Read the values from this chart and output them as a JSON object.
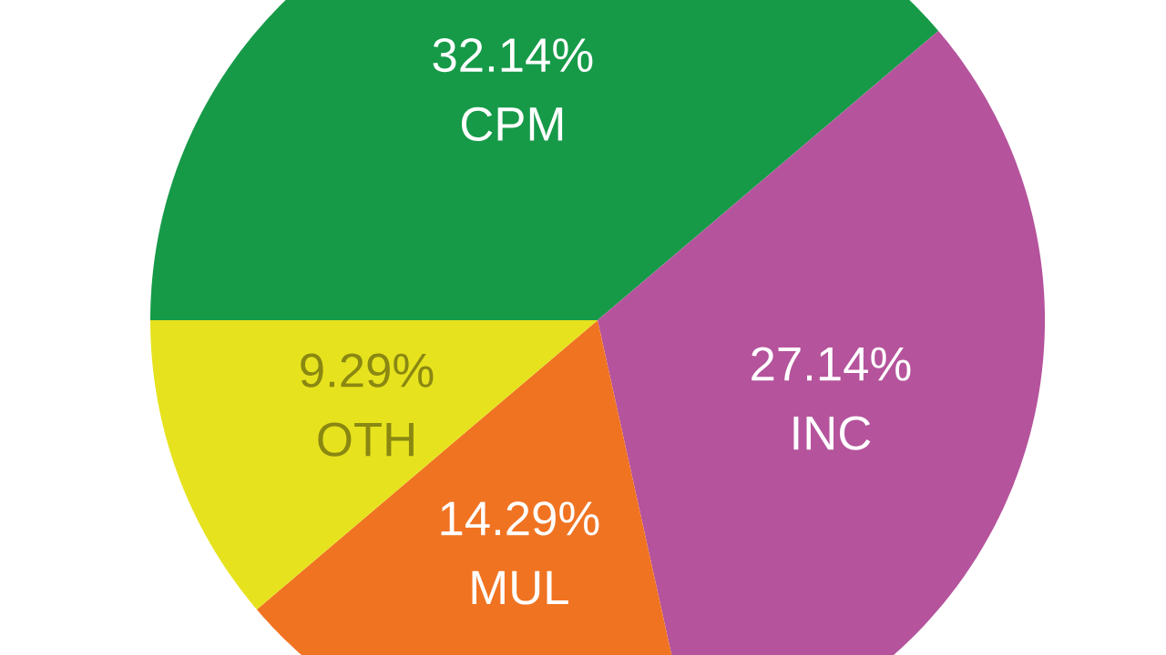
{
  "chart_data": {
    "type": "pie",
    "categories": [
      "CPM",
      "INC",
      "MUL",
      "OTH"
    ],
    "values": [
      32.14,
      27.14,
      14.29,
      9.29
    ],
    "colors": [
      "#169a48",
      "#b5539c",
      "#f07322",
      "#e6e21e"
    ],
    "value_labels": [
      "32.14%",
      "27.14%",
      "14.29%",
      "9.29%"
    ]
  }
}
